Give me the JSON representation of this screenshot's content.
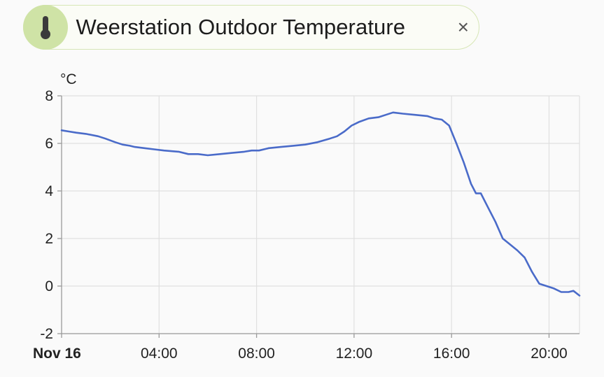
{
  "entity_chip": {
    "title": "Weerstation Outdoor Temperature",
    "icon": "thermometer-icon",
    "close_glyph": "×",
    "icon_color": "#3b3b3b",
    "background_color": "#cfe3a6"
  },
  "chart_data": {
    "type": "line",
    "ylabel": "°C",
    "ylim": [
      -2,
      8
    ],
    "y_ticks": [
      "8",
      "6",
      "4",
      "2",
      "0",
      "-2"
    ],
    "xlim": [
      0,
      21.25
    ],
    "x_ticks": [
      {
        "hour": 0,
        "label": "Nov 16",
        "bold": true
      },
      {
        "hour": 4,
        "label": "04:00",
        "bold": false
      },
      {
        "hour": 8,
        "label": "08:00",
        "bold": false
      },
      {
        "hour": 12,
        "label": "12:00",
        "bold": false
      },
      {
        "hour": 16,
        "label": "16:00",
        "bold": false
      },
      {
        "hour": 20,
        "label": "20:00",
        "bold": false
      }
    ],
    "grid": true,
    "line_color": "#4a6bc9",
    "series": [
      {
        "name": "",
        "x": [
          0,
          0.3,
          0.6,
          1.0,
          1.5,
          1.8,
          2.2,
          2.5,
          2.8,
          3.0,
          3.4,
          3.8,
          4.2,
          4.8,
          5.2,
          5.6,
          6.0,
          6.5,
          7.0,
          7.5,
          7.8,
          8.1,
          8.5,
          9.0,
          9.5,
          10.0,
          10.5,
          11.0,
          11.3,
          11.6,
          11.9,
          12.2,
          12.6,
          13.0,
          13.3,
          13.6,
          14.0,
          14.5,
          15.0,
          15.3,
          15.6,
          15.9,
          16.2,
          16.5,
          16.8,
          17.0,
          17.2,
          17.5,
          17.8,
          18.1,
          18.4,
          18.7,
          19.0,
          19.3,
          19.6,
          19.9,
          20.2,
          20.5,
          20.8,
          21.0,
          21.25
        ],
        "y": [
          6.55,
          6.5,
          6.45,
          6.4,
          6.3,
          6.2,
          6.05,
          5.95,
          5.9,
          5.85,
          5.8,
          5.75,
          5.7,
          5.65,
          5.55,
          5.55,
          5.5,
          5.55,
          5.6,
          5.65,
          5.7,
          5.7,
          5.8,
          5.85,
          5.9,
          5.95,
          6.05,
          6.2,
          6.3,
          6.5,
          6.75,
          6.9,
          7.05,
          7.1,
          7.2,
          7.3,
          7.25,
          7.2,
          7.15,
          7.05,
          7.0,
          6.75,
          6.0,
          5.2,
          4.3,
          3.9,
          3.9,
          3.3,
          2.7,
          2.0,
          1.75,
          1.5,
          1.2,
          0.6,
          0.1,
          0.0,
          -0.1,
          -0.25,
          -0.25,
          -0.2,
          -0.4
        ]
      }
    ]
  }
}
